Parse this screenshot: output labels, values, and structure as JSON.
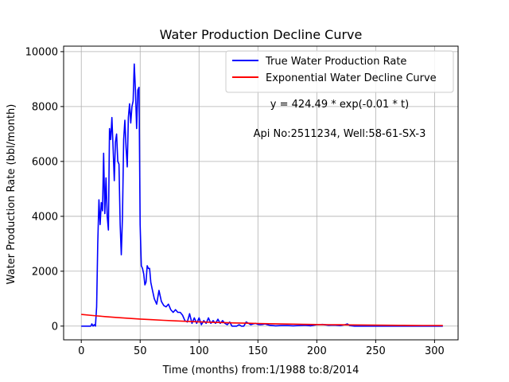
{
  "chart_data": {
    "type": "line",
    "title": "Water Production Decline Curve",
    "xlabel": "Time (months) from:1/1988 to:8/2014",
    "ylabel": "Water Production Rate (bbl/month)",
    "xlim": [
      -15,
      320
    ],
    "ylim": [
      -500,
      10200
    ],
    "xticks": [
      0,
      50,
      100,
      150,
      200,
      250,
      300
    ],
    "yticks": [
      0,
      2000,
      4000,
      6000,
      8000,
      10000
    ],
    "grid": true,
    "legend_position": "top-right",
    "annotations": [
      "y = 424.49 * exp(-0.01 * t)",
      "Api No:2511234, Well:58-61-SX-3"
    ],
    "series": [
      {
        "name": "True Water Production Rate",
        "color": "#0000ff",
        "x": [
          0,
          4,
          6,
          8,
          9,
          10,
          11,
          12,
          13,
          14,
          15,
          16,
          17,
          18,
          19,
          20,
          21,
          22,
          23,
          24,
          25,
          26,
          27,
          28,
          29,
          30,
          31,
          32,
          33,
          34,
          35,
          36,
          37,
          38,
          39,
          40,
          41,
          42,
          43,
          44,
          45,
          46,
          47,
          48,
          49,
          50,
          51,
          52,
          53,
          54,
          55,
          56,
          57,
          58,
          59,
          60,
          62,
          64,
          66,
          68,
          70,
          72,
          74,
          76,
          78,
          80,
          82,
          84,
          86,
          88,
          90,
          92,
          94,
          96,
          98,
          100,
          102,
          104,
          106,
          108,
          110,
          112,
          114,
          116,
          118,
          120,
          122,
          124,
          126,
          128,
          130,
          132,
          134,
          136,
          138,
          140,
          142,
          144,
          146,
          148,
          150,
          152,
          154,
          156,
          158,
          160,
          165,
          170,
          175,
          180,
          185,
          190,
          195,
          200,
          205,
          210,
          215,
          220,
          224,
          226,
          228,
          232,
          240,
          250,
          260,
          270,
          280,
          290,
          300,
          307
        ],
        "y": [
          0,
          0,
          0,
          0,
          80,
          0,
          50,
          0,
          700,
          3000,
          4600,
          3700,
          4500,
          4200,
          6300,
          4100,
          5400,
          4000,
          3500,
          7200,
          6800,
          7600,
          6500,
          5300,
          6700,
          7000,
          6000,
          5900,
          3700,
          2600,
          4000,
          6800,
          7500,
          6500,
          5800,
          7600,
          8100,
          7400,
          8000,
          8200,
          9550,
          8600,
          7200,
          8600,
          8700,
          3700,
          2200,
          2100,
          1900,
          1500,
          1600,
          2200,
          2100,
          2100,
          1600,
          1400,
          1000,
          800,
          1300,
          900,
          750,
          700,
          800,
          600,
          500,
          600,
          500,
          500,
          400,
          200,
          150,
          450,
          100,
          300,
          100,
          300,
          50,
          200,
          100,
          300,
          100,
          200,
          100,
          250,
          100,
          200,
          100,
          50,
          150,
          0,
          0,
          0,
          50,
          0,
          0,
          150,
          100,
          50,
          80,
          100,
          60,
          50,
          60,
          80,
          50,
          30,
          10,
          20,
          20,
          10,
          20,
          30,
          10,
          50,
          60,
          30,
          40,
          20,
          50,
          80,
          20,
          0,
          0,
          0,
          0,
          0,
          0,
          0,
          0,
          0
        ]
      },
      {
        "name": "Exponential Water Decline Curve",
        "color": "#ff0000",
        "function": "424.49 * exp(-0.01 * t)",
        "x": [
          0,
          10,
          20,
          30,
          40,
          50,
          60,
          70,
          80,
          90,
          100,
          110,
          120,
          130,
          140,
          150,
          160,
          170,
          180,
          190,
          200,
          210,
          220,
          230,
          240,
          250,
          260,
          270,
          280,
          290,
          300,
          307
        ],
        "y": [
          424.5,
          384.1,
          347.5,
          314.5,
          284.5,
          257.5,
          233.0,
          210.8,
          190.7,
          172.6,
          156.2,
          141.3,
          127.9,
          115.7,
          104.7,
          94.7,
          85.7,
          77.6,
          70.2,
          63.5,
          57.4,
          52.0,
          47.0,
          42.6,
          38.5,
          34.8,
          31.5,
          28.5,
          25.8,
          23.4,
          21.1,
          19.7
        ]
      }
    ]
  }
}
